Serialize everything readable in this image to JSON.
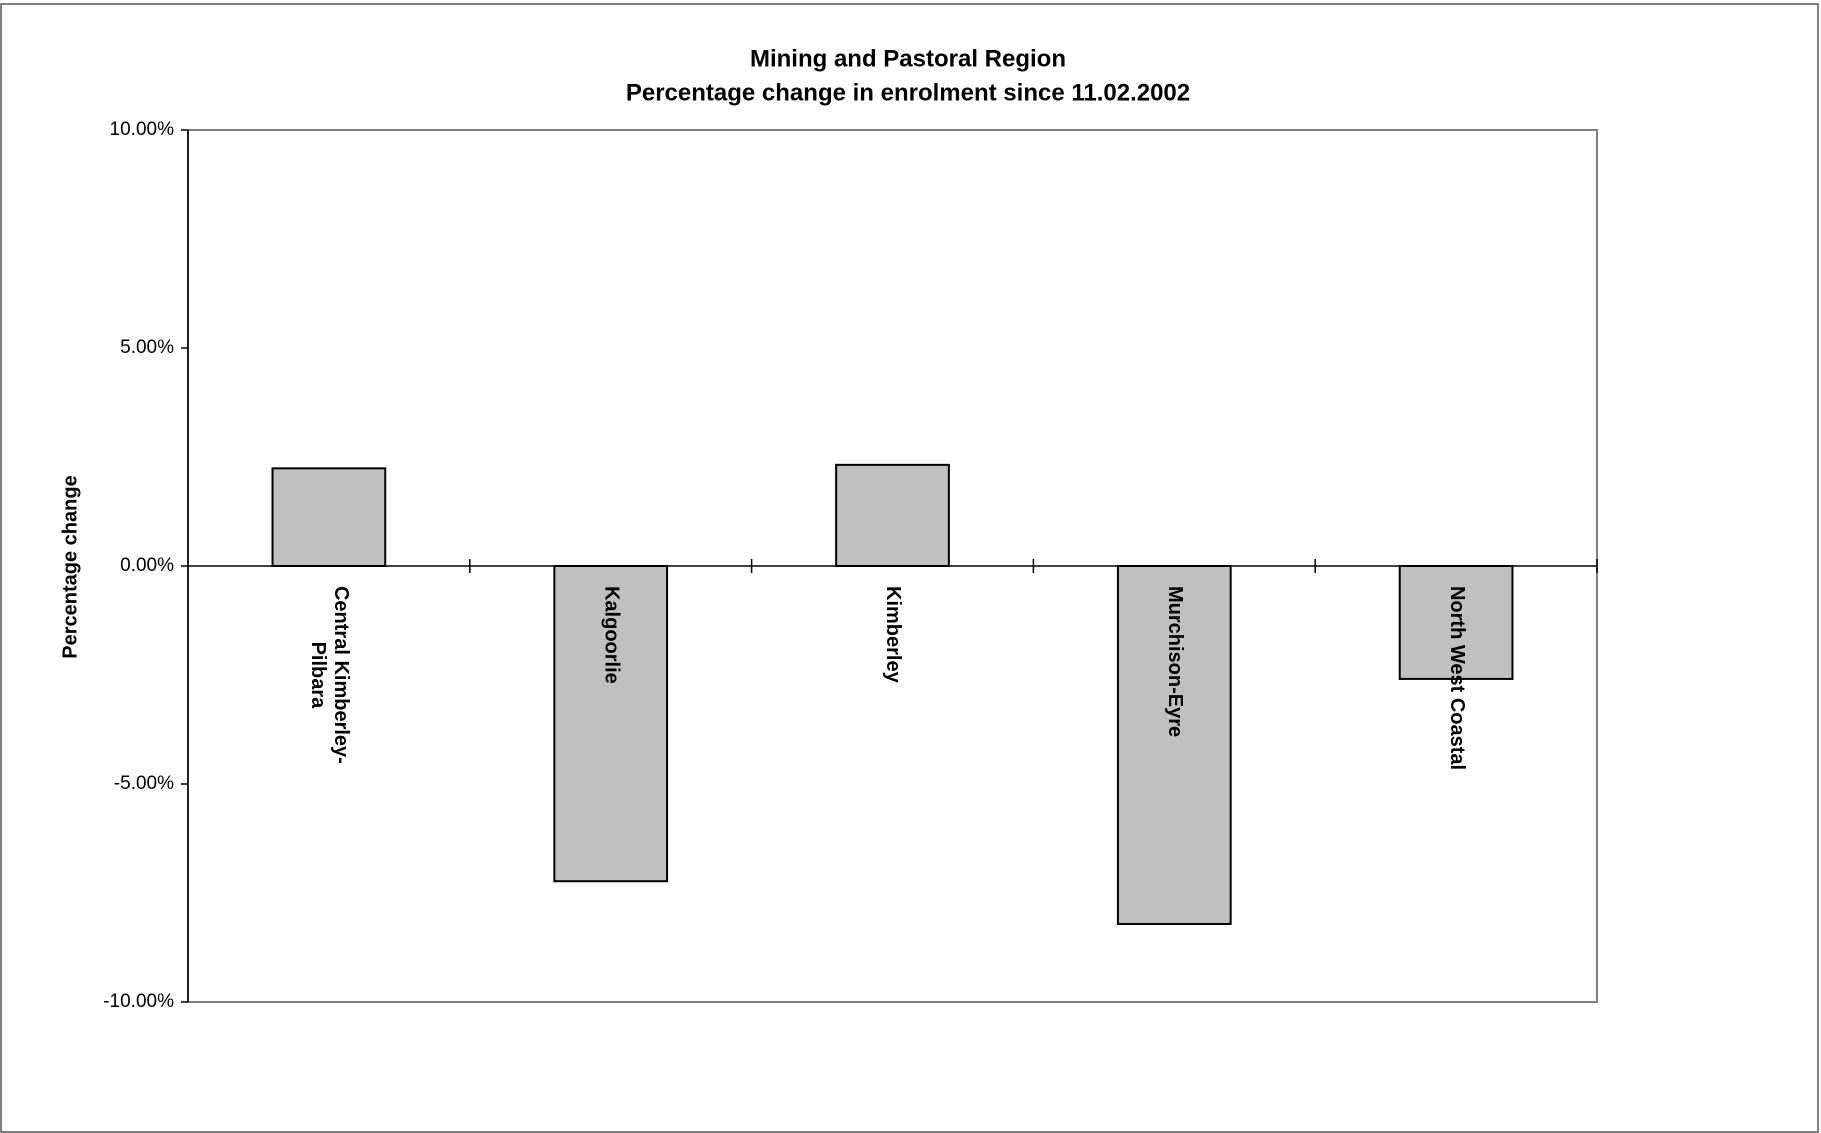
{
  "chart_data": {
    "type": "bar",
    "title": [
      "Mining and Pastoral Region",
      "Percentage change in enrolment since 11.02.2002"
    ],
    "y_label": "Percentage change",
    "categories": [
      "Central Kimberley-Pilbara",
      "Kalgoorlie",
      "Kimberley",
      "Murchison-Eyre",
      "North West Coastal"
    ],
    "values": [
      2.24,
      -7.23,
      2.32,
      -8.21,
      -2.59
    ],
    "color": "#c0c0c0",
    "ylim": [
      -10,
      10
    ],
    "yticks": [
      {
        "value": -10,
        "label": "-10.00%"
      },
      {
        "value": -5,
        "label": "-5.00%"
      },
      {
        "value": 0,
        "label": "0.00%"
      },
      {
        "value": 5,
        "label": "5.00%"
      },
      {
        "value": 10,
        "label": "10.00%"
      }
    ],
    "grid": false
  }
}
